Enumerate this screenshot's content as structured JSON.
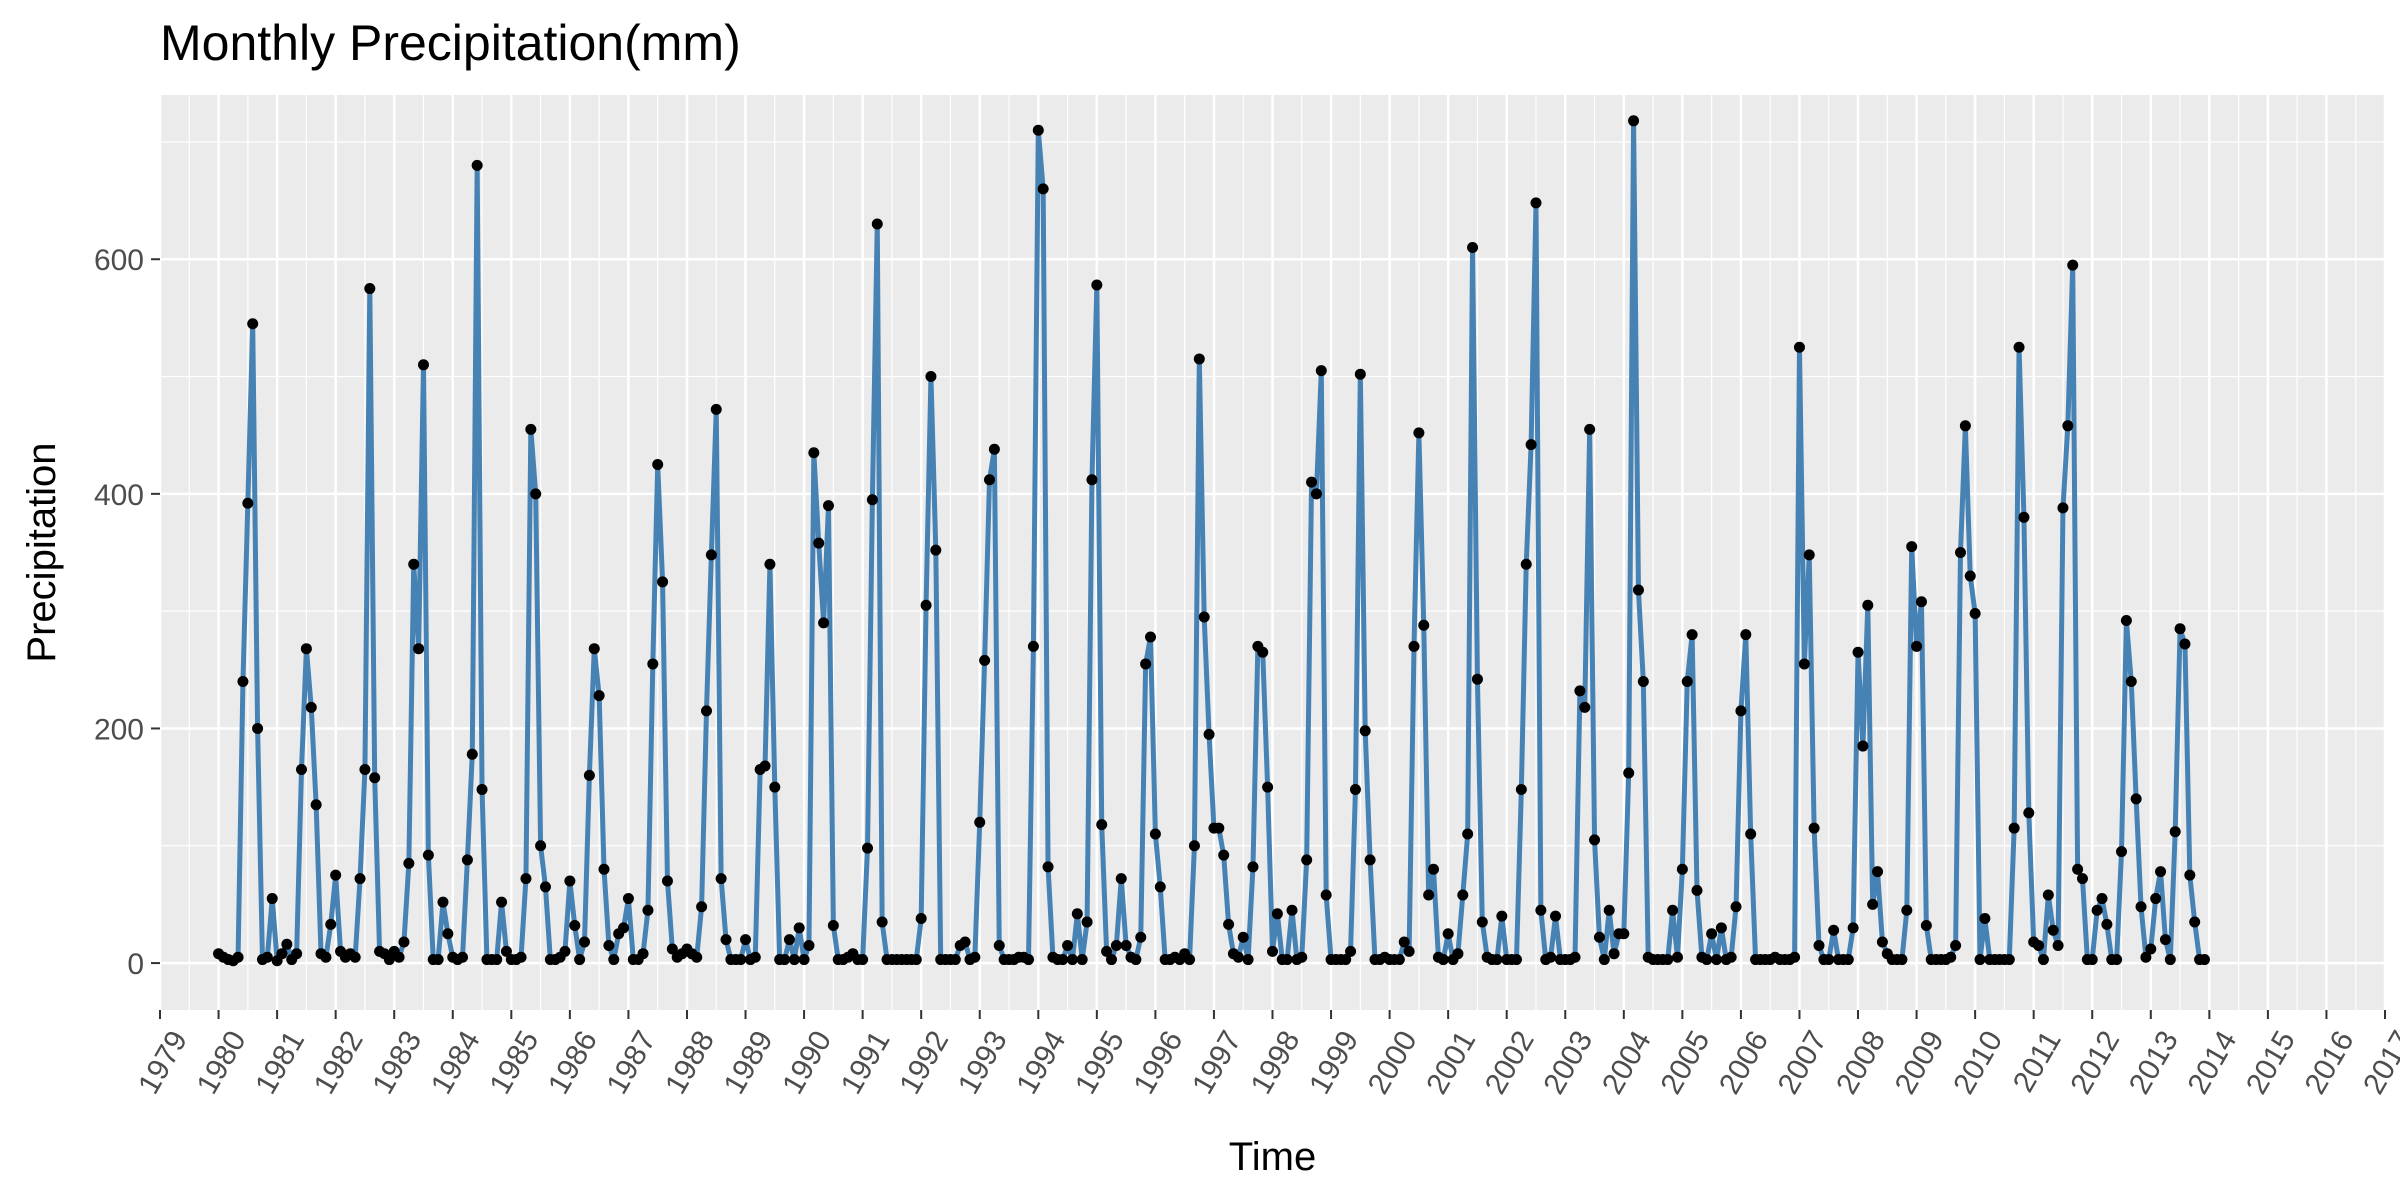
{
  "chart_data": {
    "type": "line",
    "title": "Monthly Precipitation(mm)",
    "xlabel": "Time",
    "ylabel": "Precipitation",
    "x_start": "1980-01",
    "x_end": "2015-12",
    "xlim": [
      "1979-01",
      "2017-01"
    ],
    "ylim": [
      -40,
      740
    ],
    "y_ticks": [
      0,
      200,
      400,
      600
    ],
    "x_ticks": [
      "1979",
      "1980",
      "1981",
      "1982",
      "1983",
      "1984",
      "1985",
      "1986",
      "1987",
      "1988",
      "1989",
      "1990",
      "1991",
      "1992",
      "1993",
      "1994",
      "1995",
      "1996",
      "1997",
      "1998",
      "1999",
      "2000",
      "2001",
      "2002",
      "2003",
      "2004",
      "2005",
      "2006",
      "2007",
      "2008",
      "2009",
      "2010",
      "2011",
      "2012",
      "2013",
      "2014",
      "2015",
      "2016",
      "2017"
    ],
    "grid": true,
    "line_color": "#4682B4",
    "point_color": "#000000",
    "panel_background": "#EBEBEB",
    "series": [
      {
        "values": [
          8,
          5,
          3,
          2,
          5,
          240,
          392,
          545,
          200,
          3,
          5,
          55,
          2,
          8,
          16,
          3,
          8,
          165,
          268,
          218,
          135,
          8,
          5,
          33,
          75,
          10,
          5,
          8,
          5,
          72,
          165,
          575,
          158,
          10,
          8,
          3,
          10,
          5,
          18,
          85,
          340,
          268,
          510,
          92,
          3,
          3,
          52,
          25,
          5,
          3,
          5,
          88,
          178,
          680,
          148,
          3,
          3,
          3,
          52,
          10,
          3,
          3,
          5,
          72,
          455,
          400,
          100,
          65,
          3,
          3,
          5,
          10,
          70,
          32,
          3,
          18,
          160,
          268,
          228,
          80,
          15,
          3,
          25,
          30,
          55,
          3,
          3,
          8,
          45,
          255,
          425,
          325,
          70,
          12,
          5,
          8,
          12,
          8,
          5,
          48,
          215,
          348,
          472,
          72,
          20,
          3,
          3,
          3,
          20,
          3,
          5,
          165,
          168,
          340,
          150,
          3,
          3,
          20,
          3,
          30,
          3,
          15,
          435,
          358,
          290,
          390,
          32,
          3,
          3,
          5,
          8,
          3,
          3,
          98,
          395,
          630,
          35,
          3,
          3,
          3,
          3,
          3,
          3,
          3,
          38,
          305,
          500,
          352,
          3,
          3,
          3,
          3,
          15,
          18,
          3,
          5,
          120,
          258,
          412,
          438,
          15,
          3,
          3,
          3,
          5,
          5,
          3,
          270,
          710,
          660,
          82,
          5,
          3,
          3,
          15,
          3,
          42,
          3,
          35,
          412,
          578,
          118,
          10,
          3,
          15,
          72,
          15,
          5,
          3,
          22,
          255,
          278,
          110,
          65,
          3,
          3,
          5,
          3,
          8,
          3,
          100,
          515,
          295,
          195,
          115,
          115,
          92,
          33,
          8,
          5,
          22,
          3,
          82,
          270,
          265,
          150,
          10,
          42,
          3,
          3,
          45,
          3,
          5,
          88,
          410,
          400,
          505,
          58,
          3,
          3,
          3,
          3,
          10,
          148,
          502,
          198,
          88,
          3,
          3,
          5,
          3,
          3,
          3,
          18,
          10,
          270,
          452,
          288,
          58,
          80,
          5,
          3,
          25,
          3,
          8,
          58,
          110,
          610,
          242,
          35,
          5,
          3,
          3,
          40,
          3,
          3,
          3,
          148,
          340,
          442,
          648,
          45,
          3,
          5,
          40,
          3,
          3,
          3,
          5,
          232,
          218,
          455,
          105,
          22,
          3,
          45,
          8,
          25,
          25,
          162,
          718,
          318,
          240,
          5,
          3,
          3,
          3,
          3,
          45,
          5,
          80,
          240,
          280,
          62,
          5,
          3,
          25,
          3,
          30,
          3,
          5,
          48,
          215,
          280,
          110,
          3,
          3,
          3,
          3,
          5,
          3,
          3,
          3,
          5,
          525,
          255,
          348,
          115,
          15,
          3,
          3,
          28,
          3,
          3,
          3,
          30,
          265,
          185,
          305,
          50,
          78,
          18,
          8,
          3,
          3,
          3,
          45,
          355,
          270,
          308,
          32,
          3,
          3,
          3,
          3,
          5,
          15,
          350,
          458,
          330,
          298,
          3,
          38,
          3,
          3,
          3,
          3,
          3,
          115,
          525,
          380,
          128,
          18,
          15,
          3,
          58,
          28,
          15,
          388,
          458,
          595,
          80,
          72,
          3,
          3,
          45,
          55,
          33,
          3,
          3,
          95,
          292,
          240,
          140,
          48,
          5,
          12,
          55,
          78,
          20,
          3,
          112,
          285,
          272,
          75,
          35,
          3,
          3
        ]
      }
    ]
  }
}
